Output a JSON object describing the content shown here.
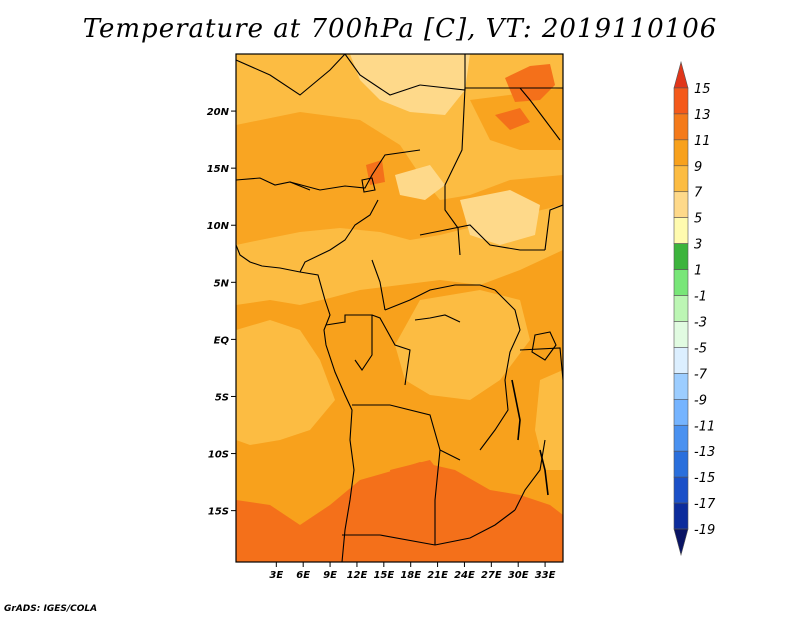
{
  "title": "Temperature at 700hPa [C], VT: 2019110106",
  "credit": "GrADS: IGES/COLA",
  "map": {
    "lon_range": [
      -1.5,
      35.0
    ],
    "lat_range": [
      -19.5,
      25.0
    ],
    "colors": {
      "c5_7": "#fed98a",
      "c7_9": "#fcbc42",
      "c9_11": "#f8a11c",
      "c11_13": "#f4701a",
      "land_lines": "#000000"
    },
    "lat_ticks": [
      {
        "value": 20,
        "label": "20N"
      },
      {
        "value": 15,
        "label": "15N"
      },
      {
        "value": 10,
        "label": "10N"
      },
      {
        "value": 5,
        "label": "5N"
      },
      {
        "value": 0,
        "label": "EQ"
      },
      {
        "value": -5,
        "label": "5S"
      },
      {
        "value": -10,
        "label": "10S"
      },
      {
        "value": -15,
        "label": "15S"
      }
    ],
    "lon_ticks": [
      {
        "value": 3,
        "label": "3E"
      },
      {
        "value": 6,
        "label": "6E"
      },
      {
        "value": 9,
        "label": "9E"
      },
      {
        "value": 12,
        "label": "12E"
      },
      {
        "value": 15,
        "label": "15E"
      },
      {
        "value": 18,
        "label": "18E"
      },
      {
        "value": 21,
        "label": "21E"
      },
      {
        "value": 24,
        "label": "24E"
      },
      {
        "value": 27,
        "label": "27E"
      },
      {
        "value": 30,
        "label": "30E"
      },
      {
        "value": 33,
        "label": "33E"
      }
    ]
  },
  "colorbar": {
    "levels": [
      15,
      13,
      11,
      9,
      7,
      5,
      3,
      1,
      -1,
      -3,
      -5,
      -7,
      -9,
      -11,
      -13,
      -15,
      -17,
      -19
    ],
    "labels": [
      "15",
      "13",
      "11",
      "9",
      "7",
      "5",
      "3",
      "1",
      "-1",
      "-3",
      "-5",
      "-7",
      "-9",
      "-11",
      "-13",
      "-15",
      "-17",
      "-19"
    ],
    "colors": [
      "#e0361a",
      "#f4591a",
      "#f47a1a",
      "#f8a11c",
      "#fcbc42",
      "#fed98a",
      "#fffbaf",
      "#3cb43c",
      "#78e678",
      "#bcf6b4",
      "#e1fbe1",
      "#dcefff",
      "#9ccdff",
      "#75b4ff",
      "#4a91f0",
      "#2a6fdc",
      "#1b50c8",
      "#0c2c9c",
      "#0a1464",
      "#dcdcff"
    ]
  }
}
